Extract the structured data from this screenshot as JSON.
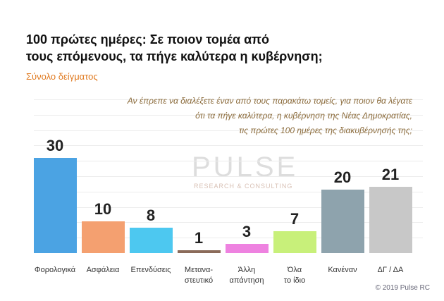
{
  "chart_data": {
    "type": "bar",
    "title": [
      "100 πρώτες ημέρες: Σε ποιον τομέα από",
      "τους επόμενους, τα πήγε καλύτερα η κυβέρνηση;"
    ],
    "subtitle": "Σύνολο δείγματος",
    "question": [
      "Αν έπρεπε να διαλέξετε έναν από τους παρακάτω τομείς, για ποιον θα λέγατε",
      "ότι τα πήγε καλύτερα, η κυβέρνηση της Νέας Δημοκρατίας,",
      "τις πρώτες 100 ημέρες της διακυβέρνησής της;"
    ],
    "categories": [
      "Φορολογικά",
      "Ασφάλεια",
      "Επενδύσεις",
      "Μετανα-\nστευτικό",
      "Άλλη\nαπάντηση",
      "Όλα\nτο ίδιο",
      "Κανέναν",
      "ΔΓ / ΔΑ"
    ],
    "values": [
      30,
      10,
      8,
      1,
      3,
      7,
      20,
      21
    ],
    "colors": [
      "#4ba3e3",
      "#f4a070",
      "#4dc8f0",
      "#8b6b5a",
      "#ee82e0",
      "#c8f07a",
      "#8ea3ad",
      "#c8c8c8"
    ],
    "watermark": [
      "PULSE",
      "RESEARCH & CONSULTING"
    ],
    "source": "© 2019 Pulse RC"
  }
}
